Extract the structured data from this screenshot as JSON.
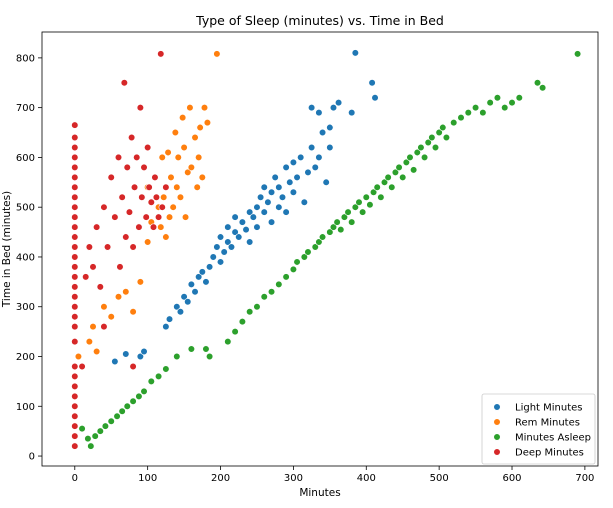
{
  "chart_data": {
    "type": "scatter",
    "title": "Type of Sleep (minutes) vs. Time in Bed",
    "xlabel": "Minutes",
    "ylabel": "Time in Bed (minutes)",
    "xlim": [
      -45,
      718
    ],
    "ylim": [
      -20,
      852
    ],
    "xticks": [
      0,
      100,
      200,
      300,
      400,
      500,
      600,
      700
    ],
    "yticks": [
      0,
      100,
      200,
      300,
      400,
      500,
      600,
      700,
      800
    ],
    "grid": false,
    "legend_position": "lower-right",
    "series": [
      {
        "name": "Light Minutes",
        "color": "#1f77b4",
        "points": [
          [
            55,
            190
          ],
          [
            70,
            205
          ],
          [
            80,
            180
          ],
          [
            90,
            200
          ],
          [
            95,
            210
          ],
          [
            125,
            260
          ],
          [
            130,
            275
          ],
          [
            140,
            300
          ],
          [
            145,
            290
          ],
          [
            150,
            320
          ],
          [
            155,
            310
          ],
          [
            160,
            345
          ],
          [
            165,
            330
          ],
          [
            170,
            360
          ],
          [
            175,
            370
          ],
          [
            180,
            350
          ],
          [
            185,
            380
          ],
          [
            190,
            400
          ],
          [
            195,
            420
          ],
          [
            200,
            390
          ],
          [
            200,
            440
          ],
          [
            205,
            410
          ],
          [
            210,
            430
          ],
          [
            210,
            460
          ],
          [
            215,
            420
          ],
          [
            220,
            450
          ],
          [
            220,
            480
          ],
          [
            225,
            440
          ],
          [
            230,
            470
          ],
          [
            235,
            455
          ],
          [
            240,
            490
          ],
          [
            240,
            430
          ],
          [
            245,
            480
          ],
          [
            250,
            500
          ],
          [
            250,
            460
          ],
          [
            255,
            520
          ],
          [
            260,
            490
          ],
          [
            260,
            540
          ],
          [
            265,
            510
          ],
          [
            270,
            470
          ],
          [
            270,
            530
          ],
          [
            275,
            560
          ],
          [
            280,
            500
          ],
          [
            280,
            540
          ],
          [
            285,
            520
          ],
          [
            290,
            580
          ],
          [
            290,
            490
          ],
          [
            295,
            550
          ],
          [
            300,
            530
          ],
          [
            300,
            590
          ],
          [
            305,
            560
          ],
          [
            310,
            600
          ],
          [
            315,
            510
          ],
          [
            320,
            570
          ],
          [
            325,
            620
          ],
          [
            330,
            580
          ],
          [
            335,
            600
          ],
          [
            340,
            650
          ],
          [
            345,
            550
          ],
          [
            350,
            620
          ],
          [
            325,
            700
          ],
          [
            335,
            690
          ],
          [
            350,
            660
          ],
          [
            355,
            700
          ],
          [
            362,
            710
          ],
          [
            380,
            690
          ],
          [
            385,
            810
          ],
          [
            408,
            750
          ],
          [
            412,
            720
          ]
        ]
      },
      {
        "name": "Rem Minutes",
        "color": "#ff7f0e",
        "points": [
          [
            5,
            200
          ],
          [
            20,
            230
          ],
          [
            25,
            260
          ],
          [
            30,
            210
          ],
          [
            40,
            300
          ],
          [
            50,
            280
          ],
          [
            60,
            320
          ],
          [
            70,
            330
          ],
          [
            80,
            290
          ],
          [
            90,
            350
          ],
          [
            100,
            430
          ],
          [
            100,
            540
          ],
          [
            105,
            470
          ],
          [
            110,
            560
          ],
          [
            115,
            500
          ],
          [
            118,
            460
          ],
          [
            120,
            600
          ],
          [
            122,
            520
          ],
          [
            125,
            440
          ],
          [
            128,
            610
          ],
          [
            130,
            480
          ],
          [
            132,
            560
          ],
          [
            135,
            500
          ],
          [
            138,
            650
          ],
          [
            140,
            540
          ],
          [
            142,
            600
          ],
          [
            145,
            520
          ],
          [
            148,
            680
          ],
          [
            150,
            620
          ],
          [
            152,
            480
          ],
          [
            155,
            570
          ],
          [
            158,
            700
          ],
          [
            160,
            580
          ],
          [
            165,
            640
          ],
          [
            168,
            540
          ],
          [
            170,
            600
          ],
          [
            172,
            660
          ],
          [
            175,
            560
          ],
          [
            178,
            700
          ],
          [
            182,
            670
          ],
          [
            185,
            200
          ],
          [
            195,
            808
          ]
        ]
      },
      {
        "name": "Minutes Asleep",
        "color": "#2ca02c",
        "points": [
          [
            10,
            55
          ],
          [
            18,
            35
          ],
          [
            22,
            20
          ],
          [
            28,
            40
          ],
          [
            35,
            50
          ],
          [
            42,
            60
          ],
          [
            50,
            70
          ],
          [
            58,
            80
          ],
          [
            65,
            90
          ],
          [
            72,
            100
          ],
          [
            80,
            110
          ],
          [
            88,
            120
          ],
          [
            95,
            130
          ],
          [
            105,
            150
          ],
          [
            115,
            160
          ],
          [
            125,
            175
          ],
          [
            140,
            200
          ],
          [
            160,
            215
          ],
          [
            180,
            215
          ],
          [
            185,
            200
          ],
          [
            210,
            230
          ],
          [
            220,
            250
          ],
          [
            230,
            270
          ],
          [
            240,
            290
          ],
          [
            250,
            300
          ],
          [
            260,
            320
          ],
          [
            270,
            330
          ],
          [
            280,
            345
          ],
          [
            290,
            360
          ],
          [
            300,
            375
          ],
          [
            305,
            390
          ],
          [
            315,
            400
          ],
          [
            320,
            410
          ],
          [
            330,
            420
          ],
          [
            335,
            430
          ],
          [
            340,
            440
          ],
          [
            350,
            450
          ],
          [
            355,
            460
          ],
          [
            360,
            470
          ],
          [
            365,
            455
          ],
          [
            370,
            480
          ],
          [
            375,
            490
          ],
          [
            380,
            470
          ],
          [
            385,
            500
          ],
          [
            390,
            510
          ],
          [
            395,
            490
          ],
          [
            400,
            520
          ],
          [
            405,
            505
          ],
          [
            410,
            530
          ],
          [
            415,
            540
          ],
          [
            420,
            520
          ],
          [
            425,
            550
          ],
          [
            430,
            560
          ],
          [
            435,
            540
          ],
          [
            440,
            570
          ],
          [
            445,
            580
          ],
          [
            450,
            560
          ],
          [
            455,
            590
          ],
          [
            460,
            600
          ],
          [
            465,
            575
          ],
          [
            470,
            610
          ],
          [
            475,
            620
          ],
          [
            480,
            600
          ],
          [
            485,
            630
          ],
          [
            490,
            640
          ],
          [
            495,
            620
          ],
          [
            500,
            650
          ],
          [
            505,
            660
          ],
          [
            510,
            640
          ],
          [
            520,
            670
          ],
          [
            530,
            680
          ],
          [
            540,
            690
          ],
          [
            550,
            700
          ],
          [
            560,
            690
          ],
          [
            570,
            710
          ],
          [
            580,
            720
          ],
          [
            590,
            700
          ],
          [
            600,
            710
          ],
          [
            610,
            720
          ],
          [
            635,
            750
          ],
          [
            642,
            740
          ],
          [
            690,
            808
          ]
        ]
      },
      {
        "name": "Deep Minutes",
        "color": "#d62728",
        "points": [
          [
            0,
            20
          ],
          [
            0,
            40
          ],
          [
            0,
            60
          ],
          [
            0,
            80
          ],
          [
            0,
            100
          ],
          [
            0,
            120
          ],
          [
            0,
            140
          ],
          [
            0,
            160
          ],
          [
            0,
            180
          ],
          [
            0,
            230
          ],
          [
            0,
            260
          ],
          [
            0,
            280
          ],
          [
            0,
            300
          ],
          [
            0,
            320
          ],
          [
            0,
            340
          ],
          [
            0,
            360
          ],
          [
            0,
            380
          ],
          [
            0,
            400
          ],
          [
            0,
            420
          ],
          [
            0,
            440
          ],
          [
            0,
            460
          ],
          [
            0,
            480
          ],
          [
            0,
            500
          ],
          [
            0,
            520
          ],
          [
            0,
            540
          ],
          [
            0,
            560
          ],
          [
            0,
            580
          ],
          [
            0,
            600
          ],
          [
            0,
            620
          ],
          [
            0,
            640
          ],
          [
            0,
            665
          ],
          [
            10,
            180
          ],
          [
            15,
            360
          ],
          [
            20,
            420
          ],
          [
            25,
            380
          ],
          [
            30,
            460
          ],
          [
            35,
            340
          ],
          [
            40,
            500
          ],
          [
            45,
            420
          ],
          [
            50,
            560
          ],
          [
            55,
            480
          ],
          [
            60,
            600
          ],
          [
            62,
            380
          ],
          [
            65,
            520
          ],
          [
            68,
            750
          ],
          [
            70,
            440
          ],
          [
            72,
            580
          ],
          [
            75,
            490
          ],
          [
            78,
            640
          ],
          [
            80,
            420
          ],
          [
            82,
            540
          ],
          [
            85,
            600
          ],
          [
            88,
            460
          ],
          [
            90,
            700
          ],
          [
            92,
            520
          ],
          [
            95,
            580
          ],
          [
            98,
            480
          ],
          [
            100,
            620
          ],
          [
            102,
            540
          ],
          [
            105,
            510
          ],
          [
            108,
            460
          ],
          [
            110,
            560
          ],
          [
            112,
            520
          ],
          [
            115,
            480
          ],
          [
            118,
            808
          ],
          [
            120,
            500
          ],
          [
            125,
            540
          ],
          [
            80,
            180
          ],
          [
            40,
            260
          ]
        ]
      }
    ]
  }
}
